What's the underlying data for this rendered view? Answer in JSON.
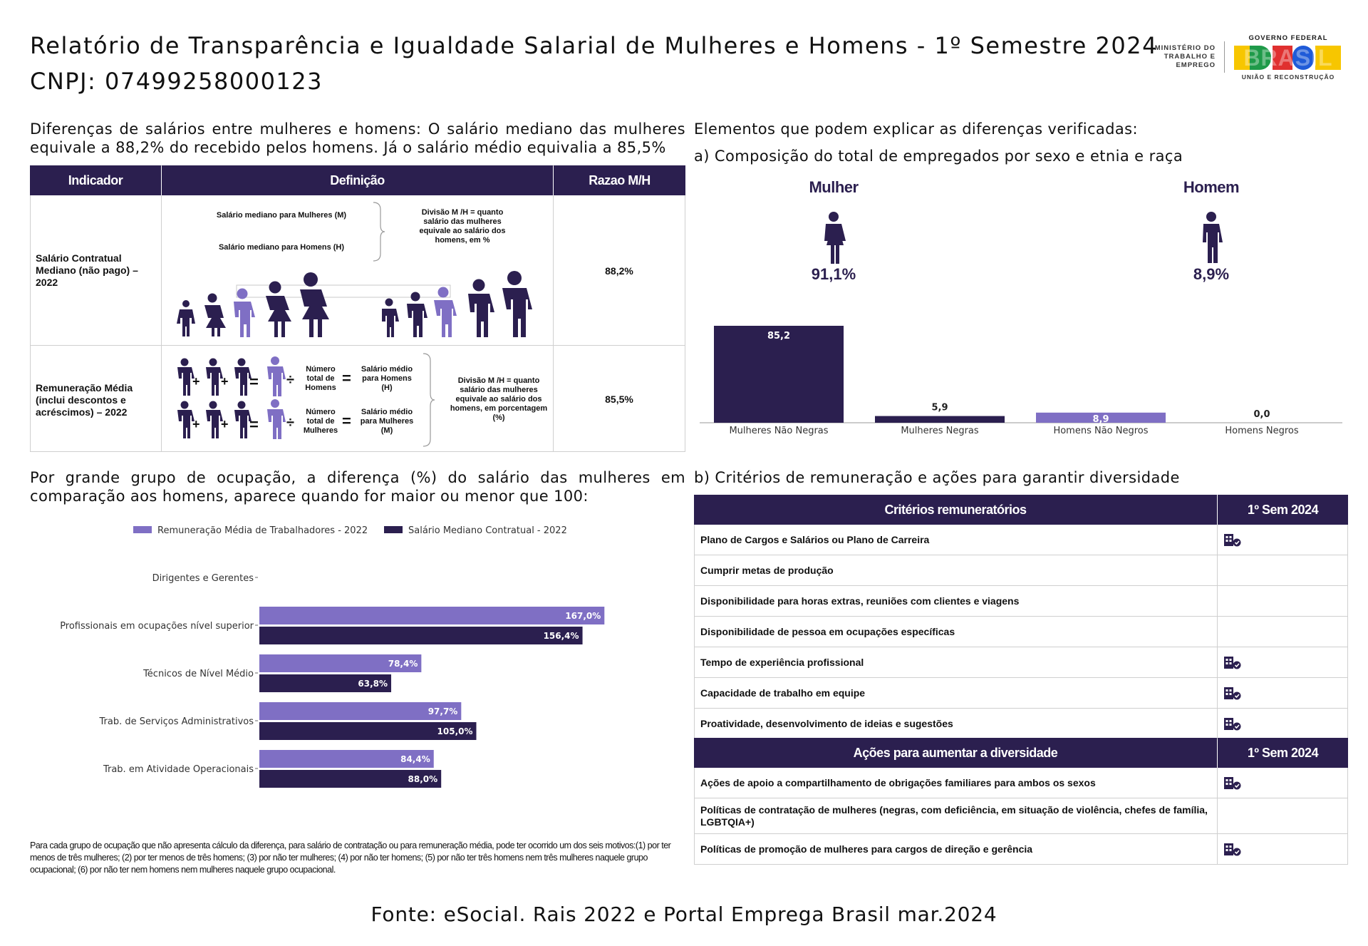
{
  "header": {
    "title": "Relatório de Transparência e Igualdade Salarial de Mulheres e Homens - 1º Semestre 2024",
    "cnpj": "CNPJ: 07499258000123",
    "ministry_logo": "MINISTÉRIO DO TRABALHO E EMPREGO",
    "gov_logo_top": "GOVERNO FEDERAL",
    "gov_logo_word": "BRASIL",
    "gov_logo_bottom": "UNIÃO E RECONSTRUÇÃO"
  },
  "left_intro": "Diferenças de salários entre mulheres e homens: O salário mediano das mulheres equivale a 88,2% do recebido pelos homens. Já o salário médio equivalia a 85,5%",
  "indicator_table": {
    "headers": [
      "Indicador",
      "Definição",
      "Razao M/H"
    ],
    "rows": [
      {
        "indicator": "Salário Contratual Mediano (não pago) – 2022",
        "def_line1": "Salário mediano para Mulheres (M)",
        "def_line2": "Salário mediano para Homens (H)",
        "def_division": "Divisão M /H = quanto salário das mulheres equivale ao salário dos homens, em %",
        "ratio": "88,2%"
      },
      {
        "indicator": "Remuneração Média (inclui descontos e acréscimos) – 2022",
        "def_num_h": "Número total de Homens",
        "def_sal_h": "Salário médio para Homens (H)",
        "def_num_m": "Número total de Mulheres",
        "def_sal_m": "Salário médio para Mulheres (M)",
        "def_division": "Divisão M /H = quanto salário das mulheres equivale ao salário dos homens, em porcentagem (%)",
        "op_plus": "+",
        "op_eq": "=",
        "op_div": "÷",
        "ratio": "85,5%"
      }
    ]
  },
  "right_intro": "Elementos que podem explicar as diferenças verificadas:",
  "composition": {
    "heading": "a) Composição do total de empregados por sexo e etnia e raça",
    "mulher_label": "Mulher",
    "mulher_pct": "91,1%",
    "homem_label": "Homem",
    "homem_pct": "8,9%",
    "colors": {
      "dark": "#2b1f4f",
      "light": "#7f6fc4"
    }
  },
  "occupation_intro": "Por grande grupo de ocupação, a diferença (%) do salário das mulheres em comparação aos homens, aparece quando for maior ou menor que 100:",
  "footnote": "Para cada grupo de ocupação que não apresenta cálculo da diferença, para salário de contratação ou para remuneração média, pode ter ocorrido um dos seis motivos:(1) por ter menos de três mulheres; (2) por ter menos de três homens; (3) por não ter mulheres; (4) por não ter homens; (5) por não ter três homens nem três mulheres naquele grupo ocupacional; (6) por não ter nem homens nem mulheres naquele grupo ocupacional.",
  "criteria": {
    "heading": "b) Critérios de remuneração e ações para garantir diversidade",
    "header1": "Critérios remuneratórios",
    "header_sem": "1º Sem 2024",
    "rows": [
      {
        "label": "Plano de Cargos e Salários ou Plano de Carreira",
        "icon": true
      },
      {
        "label": "Cumprir metas de produção",
        "icon": false
      },
      {
        "label": "Disponibilidade para horas extras, reuniões com clientes e viagens",
        "icon": false
      },
      {
        "label": "Disponibilidade de pessoa em ocupações específicas",
        "icon": false
      },
      {
        "label": "Tempo de experiência profissional",
        "icon": true
      },
      {
        "label": "Capacidade de trabalho em equipe",
        "icon": true
      },
      {
        "label": "Proatividade, desenvolvimento de ideias e sugestões",
        "icon": true
      }
    ],
    "header2": "Ações para aumentar a diversidade",
    "header_sem2": "1º Sem 2024",
    "rows2": [
      {
        "label": "Ações de apoio a compartilhamento de obrigações familiares para ambos os sexos",
        "icon": true
      },
      {
        "label": "Políticas de contratação de mulheres (negras, com deficiência, em situação de violência, chefes de família, LGBTQIA+)",
        "icon": false
      },
      {
        "label": "Políticas de promoção de mulheres para cargos de direção e gerência",
        "icon": true
      }
    ]
  },
  "source": "Fonte: eSocial. Rais 2022 e Portal Emprega Brasil mar.2024",
  "chart_data": [
    {
      "type": "bar",
      "title": "Composição do total de empregados por sexo e etnia e raça",
      "categories": [
        "Mulheres Não Negras",
        "Mulheres Negras",
        "Homens Não Negros",
        "Homens Negros"
      ],
      "values": [
        85.2,
        5.9,
        8.9,
        0.0
      ],
      "value_labels": [
        "85,2",
        "5,9",
        "8,9",
        "0,0"
      ],
      "colors": [
        "#2b1f4f",
        "#2b1f4f",
        "#7f6fc4",
        "#2b1f4f"
      ],
      "ylim": [
        0,
        85.2
      ]
    },
    {
      "type": "bar",
      "orientation": "horizontal",
      "categories": [
        "Dirigentes e Gerentes",
        "Profissionais em ocupações nível superior",
        "Técnicos de Nível Médio",
        "Trab. de Serviços Administrativos",
        "Trab. em Atividade Operacionais"
      ],
      "series": [
        {
          "name": "Remuneração Média de Trabalhadores - 2022",
          "color": "#7f6fc4",
          "values": [
            null,
            167.0,
            78.4,
            97.7,
            84.4
          ],
          "labels": [
            "",
            "167,0%",
            "78,4%",
            "97,7%",
            "84,4%"
          ]
        },
        {
          "name": "Salário Mediano Contratual - 2022",
          "color": "#2b1f4f",
          "values": [
            null,
            156.4,
            63.8,
            105.0,
            88.0
          ],
          "labels": [
            "",
            "156,4%",
            "63,8%",
            "105,0%",
            "88,0%"
          ]
        }
      ],
      "xlim": [
        0,
        180
      ]
    }
  ]
}
